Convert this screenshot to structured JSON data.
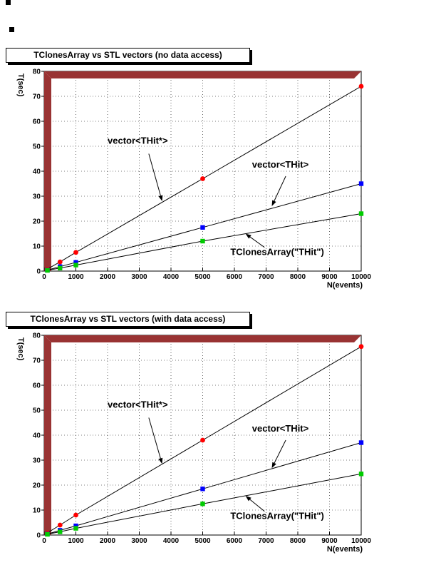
{
  "window": {
    "background": "#ffffff"
  },
  "chart_data": [
    {
      "type": "scatter",
      "title": "TClonesArray vs STL vectors (no data access)",
      "xlabel": "N(events)",
      "ylabel": "T(sec)",
      "xlim": [
        0,
        10000
      ],
      "ylim": [
        0,
        80
      ],
      "xticks": [
        0,
        1000,
        2000,
        3000,
        4000,
        5000,
        6000,
        7000,
        8000,
        9000,
        10000
      ],
      "yticks": [
        0,
        10,
        20,
        30,
        40,
        50,
        60,
        70,
        80
      ],
      "grid": true,
      "frame_band_color": "#993333",
      "x": [
        100,
        500,
        1000,
        5000,
        10000
      ],
      "series": [
        {
          "name": "vector<THit*>",
          "color": "#ff0000",
          "marker": "circle",
          "values": [
            0.8,
            3.7,
            7.5,
            37,
            74
          ]
        },
        {
          "name": "vector<THit>",
          "color": "#0000ff",
          "marker": "square",
          "values": [
            0.4,
            1.8,
            3.5,
            17.5,
            35
          ]
        },
        {
          "name": "TClonesArray(\"THit\")",
          "color": "#00cc00",
          "marker": "square",
          "values": [
            0.3,
            1.2,
            2.4,
            12,
            23
          ]
        }
      ],
      "annotations": [
        {
          "text": "vector<THit*>",
          "label_x": 2950,
          "label_y": 51,
          "arrow_from_x": 3300,
          "arrow_from_y": 47,
          "arrow_to_x": 3720,
          "arrow_to_y": 28
        },
        {
          "text": "vector<THit>",
          "label_x": 7450,
          "label_y": 41.5,
          "arrow_from_x": 7620,
          "arrow_from_y": 38,
          "arrow_to_x": 7180,
          "arrow_to_y": 26
        },
        {
          "text": "TClonesArray(\"THit\")",
          "label_x": 7350,
          "label_y": 6.5,
          "arrow_from_x": 6950,
          "arrow_from_y": 9.5,
          "arrow_to_x": 6350,
          "arrow_to_y": 15
        }
      ]
    },
    {
      "type": "scatter",
      "title": "TClonesArray vs STL vectors (with data access)",
      "xlabel": "N(events)",
      "ylabel": "T(sec)",
      "xlim": [
        0,
        10000
      ],
      "ylim": [
        0,
        80
      ],
      "xticks": [
        0,
        1000,
        2000,
        3000,
        4000,
        5000,
        6000,
        7000,
        8000,
        9000,
        10000
      ],
      "yticks": [
        0,
        10,
        20,
        30,
        40,
        50,
        60,
        70,
        80
      ],
      "grid": true,
      "frame_band_color": "#993333",
      "x": [
        100,
        500,
        1000,
        5000,
        10000
      ],
      "series": [
        {
          "name": "vector<THit*>",
          "color": "#ff0000",
          "marker": "circle",
          "values": [
            0.9,
            4.0,
            8.0,
            38,
            75.5
          ]
        },
        {
          "name": "vector<THit>",
          "color": "#0000ff",
          "marker": "square",
          "values": [
            0.4,
            1.9,
            3.7,
            18.5,
            37
          ]
        },
        {
          "name": "TClonesArray(\"THit\")",
          "color": "#00cc00",
          "marker": "square",
          "values": [
            0.3,
            1.3,
            2.7,
            12.5,
            24.5
          ]
        }
      ],
      "annotations": [
        {
          "text": "vector<THit*>",
          "label_x": 2950,
          "label_y": 51,
          "arrow_from_x": 3300,
          "arrow_from_y": 47,
          "arrow_to_x": 3720,
          "arrow_to_y": 28.5
        },
        {
          "text": "vector<THit>",
          "label_x": 7450,
          "label_y": 41.5,
          "arrow_from_x": 7620,
          "arrow_from_y": 38,
          "arrow_to_x": 7180,
          "arrow_to_y": 26.8
        },
        {
          "text": "TClonesArray(\"THit\")",
          "label_x": 7350,
          "label_y": 6.5,
          "arrow_from_x": 6950,
          "arrow_from_y": 9.5,
          "arrow_to_x": 6350,
          "arrow_to_y": 15.7
        }
      ]
    }
  ]
}
